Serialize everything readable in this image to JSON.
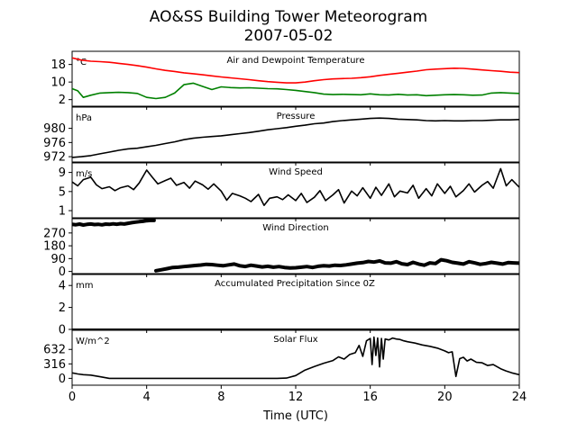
{
  "title": "AO&SS Building Tower Meteorogram",
  "subtitle": "2007-05-02",
  "xlabel": "Time (UTC)",
  "x_ticks": [
    0,
    4,
    8,
    12,
    16,
    20,
    24
  ],
  "chart_data": [
    {
      "type": "line",
      "title": "Air and Dewpoint Temperature",
      "unit_label": "°C",
      "xlim": [
        0,
        24
      ],
      "ylim": [
        -1,
        24
      ],
      "yticks": [
        2,
        10,
        18
      ],
      "series": [
        {
          "color": "#ff0000",
          "x": [
            0,
            0.5,
            1,
            1.5,
            2,
            2.5,
            3,
            3.5,
            4,
            4.5,
            5,
            5.5,
            6,
            6.5,
            7,
            7.5,
            8,
            8.5,
            9,
            9.5,
            10,
            10.5,
            11,
            11.5,
            12,
            12.5,
            13,
            13.5,
            14,
            14.5,
            15,
            15.5,
            16,
            16.5,
            17,
            17.5,
            18,
            18.5,
            19,
            19.5,
            20,
            20.5,
            21,
            21.5,
            22,
            22.5,
            23,
            23.5,
            24
          ],
          "values": [
            21,
            20,
            19.5,
            19.3,
            19,
            18.5,
            18,
            17.5,
            16.8,
            16,
            15.3,
            14.8,
            14.2,
            13.8,
            13.3,
            12.8,
            12.3,
            11.9,
            11.5,
            11.1,
            10.6,
            10.2,
            9.9,
            9.6,
            9.6,
            10,
            10.6,
            11.1,
            11.4,
            11.6,
            11.7,
            12,
            12.4,
            13,
            13.5,
            14,
            14.5,
            15,
            15.6,
            15.9,
            16.1,
            16.3,
            16.2,
            15.9,
            15.5,
            15.2,
            14.9,
            14.5,
            14.3
          ]
        },
        {
          "color": "#008000",
          "x": [
            0,
            0.3,
            0.6,
            1,
            1.5,
            2,
            2.5,
            3,
            3.5,
            4,
            4.5,
            5,
            5.5,
            6,
            6.5,
            7,
            7.5,
            8,
            8.5,
            9,
            9.5,
            10,
            10.5,
            11,
            11.5,
            12,
            12.5,
            13,
            13.5,
            14,
            14.5,
            15,
            15.5,
            16,
            16.5,
            17,
            17.5,
            18,
            18.5,
            19,
            19.5,
            20,
            20.5,
            21,
            21.5,
            22,
            22.5,
            23,
            23.5,
            24
          ],
          "values": [
            7,
            6,
            3,
            4,
            5,
            5.2,
            5.3,
            5.2,
            4.8,
            3,
            2.5,
            3,
            5,
            8.8,
            9.5,
            8,
            6.6,
            7.8,
            7.5,
            7.3,
            7.4,
            7.2,
            7,
            6.9,
            6.6,
            6.2,
            5.7,
            5.2,
            4.5,
            4.3,
            4.4,
            4.3,
            4.2,
            4.6,
            4.2,
            4.1,
            4.4,
            4.1,
            4.2,
            3.8,
            4,
            4.2,
            4.3,
            4.2,
            4,
            4.1,
            5,
            5.2,
            5,
            4.8
          ]
        }
      ]
    },
    {
      "type": "line",
      "title": "Pressure",
      "unit_label": "hPa",
      "xlim": [
        0,
        24
      ],
      "ylim": [
        970.5,
        986
      ],
      "yticks": [
        972,
        976,
        980
      ],
      "series": [
        {
          "color": "#000000",
          "x": [
            0,
            0.5,
            1,
            1.5,
            2,
            2.5,
            3,
            3.5,
            4,
            4.5,
            5,
            5.5,
            6,
            6.5,
            7,
            7.5,
            8,
            8.5,
            9,
            9.5,
            10,
            10.5,
            11,
            11.5,
            12,
            12.5,
            13,
            13.5,
            14,
            14.5,
            15,
            15.5,
            16,
            16.5,
            17,
            17.5,
            18,
            18.5,
            19,
            19.5,
            20,
            20.5,
            21,
            21.5,
            22,
            22.5,
            23,
            23.5,
            24
          ],
          "values": [
            971.8,
            972,
            972.3,
            972.8,
            973.3,
            973.8,
            974.2,
            974.4,
            974.8,
            975.2,
            975.7,
            976.2,
            976.8,
            977.2,
            977.5,
            977.7,
            977.9,
            978.2,
            978.5,
            978.8,
            979.2,
            979.6,
            979.9,
            980.2,
            980.6,
            980.9,
            981.3,
            981.5,
            981.9,
            982.2,
            982.4,
            982.6,
            982.8,
            982.9,
            982.8,
            982.6,
            982.5,
            982.4,
            982.2,
            982.1,
            982.2,
            982.1,
            982.1,
            982.2,
            982.2,
            982.3,
            982.4,
            982.4,
            982.5
          ]
        }
      ]
    },
    {
      "type": "line",
      "title": "Wind Speed",
      "unit_label": "m/s",
      "xlim": [
        0,
        24
      ],
      "ylim": [
        -0.5,
        11
      ],
      "yticks": [
        1,
        5,
        9
      ],
      "series": [
        {
          "color": "#000000",
          "x": [
            0,
            0.3,
            0.6,
            1,
            1.3,
            1.6,
            2,
            2.3,
            2.6,
            3,
            3.3,
            3.6,
            4,
            4.3,
            4.6,
            5,
            5.3,
            5.6,
            6,
            6.3,
            6.6,
            7,
            7.3,
            7.6,
            8,
            8.3,
            8.6,
            9,
            9.3,
            9.6,
            10,
            10.3,
            10.6,
            11,
            11.3,
            11.6,
            12,
            12.3,
            12.6,
            13,
            13.3,
            13.6,
            14,
            14.3,
            14.6,
            15,
            15.3,
            15.6,
            16,
            16.3,
            16.6,
            17,
            17.3,
            17.6,
            18,
            18.3,
            18.6,
            19,
            19.3,
            19.6,
            20,
            20.3,
            20.6,
            21,
            21.3,
            21.6,
            22,
            22.3,
            22.6,
            23,
            23.3,
            23.6,
            24
          ],
          "values": [
            7,
            6.2,
            7.5,
            8,
            6.4,
            5.6,
            6,
            5.2,
            5.8,
            6.2,
            5.4,
            6.8,
            9.5,
            8,
            6.6,
            7.3,
            7.8,
            6.3,
            6.9,
            5.7,
            7.2,
            6.4,
            5.5,
            6.6,
            5.1,
            3.2,
            4.6,
            4.1,
            3.6,
            2.9,
            4.4,
            2.1,
            3.6,
            3.9,
            3.3,
            4.3,
            3.1,
            4.6,
            2.7,
            3.8,
            5.2,
            3.1,
            4.3,
            5.4,
            2.6,
            5.1,
            4.1,
            5.8,
            3.6,
            5.9,
            4.2,
            6.6,
            3.9,
            5.1,
            4.7,
            6.3,
            3.6,
            5.6,
            4.1,
            6.6,
            4.6,
            6.1,
            3.9,
            5.2,
            6.6,
            4.9,
            6.3,
            7.1,
            5.7,
            9.8,
            6.2,
            7.5,
            5.9
          ]
        }
      ]
    },
    {
      "type": "scatter",
      "title": "Wind Direction",
      "unit_label": "",
      "xlim": [
        0,
        24
      ],
      "ylim": [
        -15,
        370
      ],
      "yticks": [
        0,
        90,
        180,
        270
      ],
      "series": [
        {
          "color": "#000000",
          "x": [
            0,
            0.2,
            0.4,
            0.6,
            0.8,
            1,
            1.2,
            1.4,
            1.6,
            1.8,
            2,
            2.2,
            2.4,
            2.6,
            2.8,
            3,
            3.2,
            3.4,
            3.6,
            3.8,
            4,
            4.2,
            4.4
          ],
          "values": [
            330,
            328,
            332,
            326,
            330,
            333,
            329,
            331,
            327,
            332,
            330,
            334,
            331,
            335,
            333,
            338,
            342,
            346,
            349,
            352,
            356,
            358,
            358
          ]
        },
        {
          "color": "#000000",
          "x": [
            4.5,
            4.8,
            5.1,
            5.4,
            5.7,
            6,
            6.3,
            6.6,
            6.9,
            7.2,
            7.5,
            7.8,
            8.1,
            8.4,
            8.7,
            9,
            9.3,
            9.6,
            9.9,
            10.2,
            10.5,
            10.8,
            11.1,
            11.4,
            11.7,
            12,
            12.3,
            12.6,
            12.9,
            13.2,
            13.5,
            13.8,
            14.1,
            14.4,
            14.7,
            15,
            15.3,
            15.6,
            15.9,
            16.2,
            16.5,
            16.8,
            17.1,
            17.4,
            17.7,
            18,
            18.3,
            18.6,
            18.9,
            19.2,
            19.5,
            19.8,
            20.1,
            20.4,
            20.7,
            21,
            21.3,
            21.6,
            21.9,
            22.2,
            22.5,
            22.8,
            23.1,
            23.4,
            23.7,
            24
          ],
          "values": [
            5,
            12,
            20,
            28,
            30,
            34,
            38,
            42,
            45,
            50,
            48,
            44,
            40,
            46,
            52,
            40,
            35,
            44,
            38,
            32,
            36,
            30,
            34,
            28,
            24,
            26,
            30,
            34,
            28,
            36,
            40,
            38,
            44,
            42,
            46,
            52,
            58,
            62,
            70,
            66,
            74,
            60,
            58,
            68,
            54,
            48,
            64,
            52,
            44,
            60,
            56,
            82,
            75,
            64,
            58,
            52,
            68,
            60,
            50,
            56,
            64,
            58,
            52,
            62,
            60,
            58
          ]
        }
      ]
    },
    {
      "type": "line",
      "title": "Accumulated Precipitation Since 0Z",
      "unit_label": "mm",
      "xlim": [
        0,
        24
      ],
      "ylim": [
        0,
        5
      ],
      "yticks": [
        0,
        2,
        4
      ],
      "series": [
        {
          "color": "#000000",
          "x": [
            0,
            24
          ],
          "values": [
            0,
            0
          ]
        }
      ]
    },
    {
      "type": "line",
      "title": "Solar Flux",
      "unit_label": "W/m^2",
      "xlim": [
        0,
        24
      ],
      "ylim": [
        -150,
        1050
      ],
      "yticks": [
        0,
        316,
        632
      ],
      "series": [
        {
          "color": "#000000",
          "x": [
            0,
            0.3,
            0.6,
            1,
            1.5,
            2,
            3,
            4,
            5,
            6,
            7,
            8,
            9,
            10,
            10.5,
            11,
            11.5,
            12,
            12.5,
            13,
            13.5,
            14,
            14.3,
            14.6,
            14.9,
            15.2,
            15.4,
            15.6,
            15.8,
            16,
            16.1,
            16.2,
            16.3,
            16.4,
            16.5,
            16.6,
            16.7,
            16.8,
            17,
            17.2,
            17.4,
            17.6,
            17.8,
            18,
            18.4,
            18.8,
            19.2,
            19.6,
            20,
            20.2,
            20.4,
            20.6,
            20.8,
            21,
            21.2,
            21.4,
            21.7,
            22,
            22.3,
            22.6,
            23,
            23.3,
            23.6,
            24
          ],
          "values": [
            120,
            95,
            80,
            70,
            35,
            0,
            0,
            0,
            0,
            0,
            0,
            0,
            0,
            0,
            0,
            0,
            5,
            60,
            180,
            260,
            330,
            390,
            470,
            420,
            520,
            560,
            720,
            480,
            820,
            870,
            300,
            900,
            500,
            880,
            250,
            870,
            420,
            860,
            840,
            880,
            860,
            850,
            820,
            800,
            770,
            730,
            700,
            660,
            600,
            560,
            580,
            40,
            430,
            460,
            380,
            420,
            350,
            340,
            280,
            300,
            210,
            160,
            120,
            80
          ]
        }
      ]
    }
  ]
}
